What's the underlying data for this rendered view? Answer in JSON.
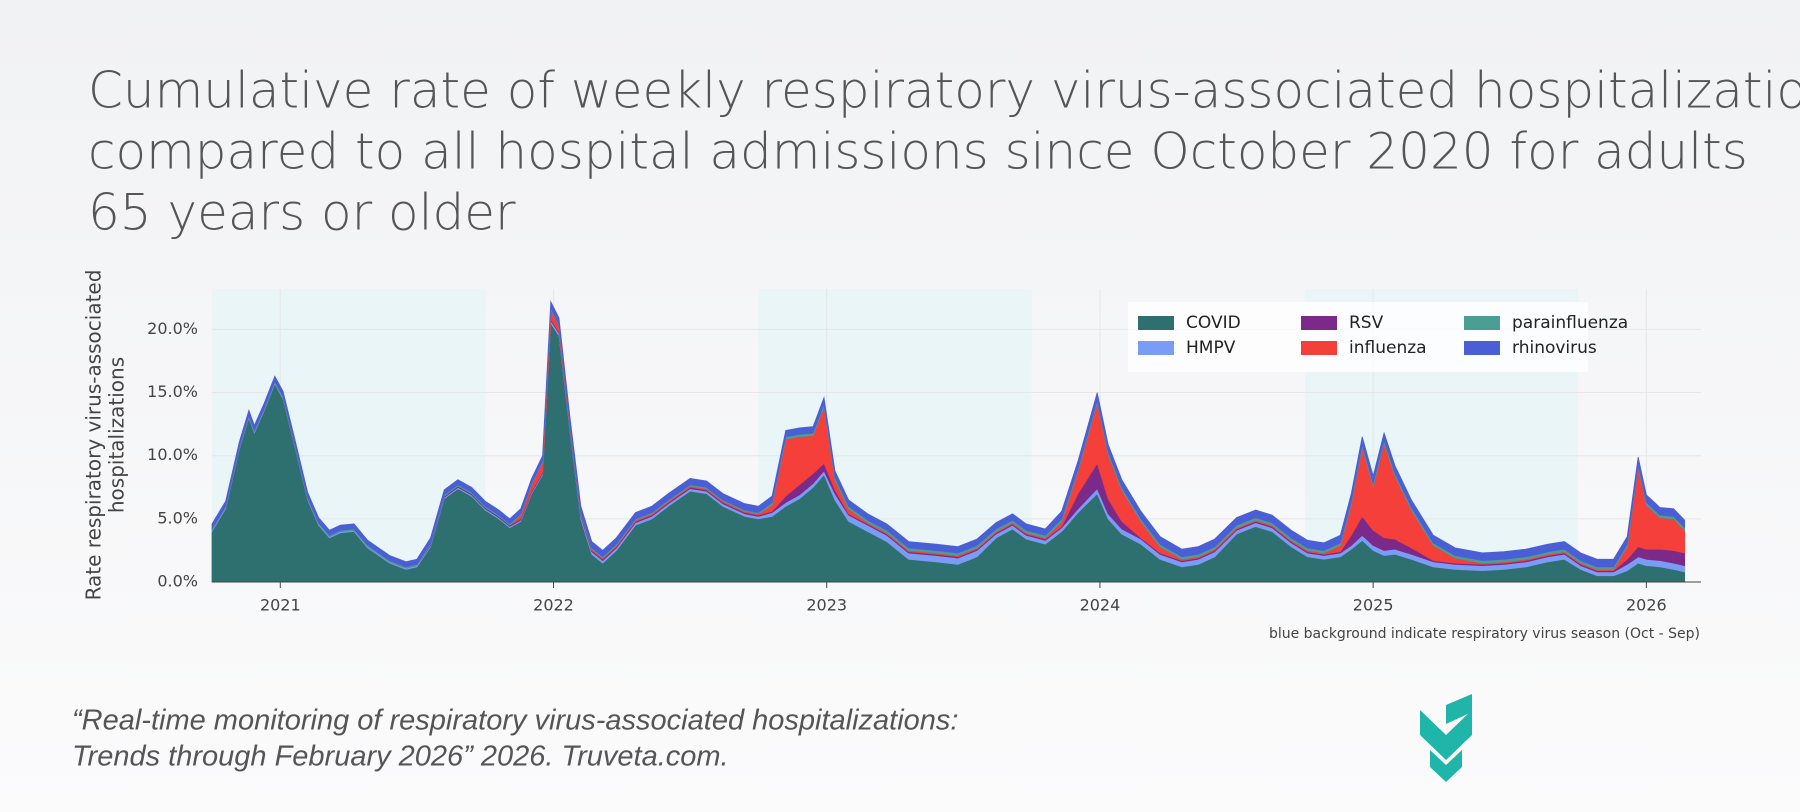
{
  "chart_data": {
    "type": "stacked_area",
    "title": [
      "Cumulative rate of weekly respiratory virus-associated hospitalizations",
      "compared to all hospital admissions since October 2020 for adults",
      "65 years or older"
    ],
    "ylabel": [
      "Rate respiratory virus-associated",
      "hospitalizations"
    ],
    "note": "blue background indicate respiratory virus season (Oct - Sep)",
    "citation": [
      "“Real-time monitoring of respiratory virus-associated hospitalizations:",
      "Trends through February 2026” 2026. Truveta.com."
    ],
    "logo": "TRUVETA",
    "xlim": [
      2020.75,
      2026.2
    ],
    "xticks": [
      2021,
      2022,
      2023,
      2024,
      2025,
      2026
    ],
    "ylim": [
      0,
      23.2
    ],
    "yticks": [
      {
        "value": 0,
        "label": "0.0%"
      },
      {
        "value": 5,
        "label": "5.0%"
      },
      {
        "value": 10,
        "label": "10.0%"
      },
      {
        "value": 15,
        "label": "15.0%"
      },
      {
        "value": 20,
        "label": "20.0%"
      }
    ],
    "grid": true,
    "legend": "upper right",
    "seasons": [
      [
        2020.75,
        2021.75
      ],
      [
        2022.75,
        2023.75
      ],
      [
        2024.75,
        2025.75
      ]
    ],
    "season_color": "#e9f5f7",
    "x": [
      2020.75,
      2020.8,
      2020.85,
      2020.885,
      2020.905,
      2020.94,
      2020.98,
      2021.01,
      2021.05,
      2021.1,
      2021.14,
      2021.18,
      2021.22,
      2021.27,
      2021.32,
      2021.4,
      2021.46,
      2021.5,
      2021.55,
      2021.6,
      2021.65,
      2021.7,
      2021.75,
      2021.8,
      2021.84,
      2021.88,
      2021.92,
      2021.96,
      2021.99,
      2022.02,
      2022.06,
      2022.1,
      2022.14,
      2022.18,
      2022.23,
      2022.3,
      2022.36,
      2022.42,
      2022.5,
      2022.56,
      2022.62,
      2022.7,
      2022.75,
      2022.8,
      2022.85,
      2022.9,
      2022.95,
      2022.99,
      2023.03,
      2023.08,
      2023.15,
      2023.22,
      2023.3,
      2023.4,
      2023.48,
      2023.55,
      2023.62,
      2023.68,
      2023.73,
      2023.8,
      2023.86,
      2023.92,
      2023.99,
      2024.03,
      2024.08,
      2024.15,
      2024.22,
      2024.3,
      2024.36,
      2024.42,
      2024.5,
      2024.57,
      2024.63,
      2024.7,
      2024.76,
      2024.82,
      2024.88,
      2024.92,
      2024.96,
      2025.0,
      2025.04,
      2025.08,
      2025.14,
      2025.22,
      2025.3,
      2025.4,
      2025.48,
      2025.56,
      2025.64,
      2025.7,
      2025.76,
      2025.82,
      2025.88,
      2025.93,
      2025.97,
      2026.0,
      2026.05,
      2026.1,
      2026.14
    ],
    "series": [
      {
        "name": "COVID",
        "color": "#2e7070",
        "values": [
          4.0,
          5.8,
          10.5,
          13.0,
          11.8,
          13.5,
          15.7,
          14.5,
          11.0,
          6.5,
          4.5,
          3.5,
          3.9,
          4.0,
          2.7,
          1.5,
          1.0,
          1.2,
          2.8,
          6.6,
          7.4,
          6.8,
          5.7,
          5.0,
          4.3,
          4.8,
          7.0,
          8.5,
          20.5,
          19.5,
          12.0,
          5.0,
          2.2,
          1.5,
          2.5,
          4.5,
          5.0,
          6.0,
          7.2,
          7.0,
          6.0,
          5.2,
          5.0,
          5.2,
          6.0,
          6.6,
          7.5,
          8.5,
          6.5,
          4.8,
          4.0,
          3.2,
          1.8,
          1.6,
          1.4,
          2.0,
          3.5,
          4.2,
          3.4,
          3.0,
          4.0,
          5.5,
          7.0,
          5.0,
          3.8,
          3.0,
          1.8,
          1.2,
          1.4,
          2.0,
          3.8,
          4.4,
          4.0,
          2.8,
          2.0,
          1.8,
          2.0,
          2.6,
          3.3,
          2.5,
          2.1,
          2.2,
          1.8,
          1.2,
          1.0,
          0.9,
          1.0,
          1.2,
          1.6,
          1.8,
          1.0,
          0.5,
          0.5,
          0.9,
          1.5,
          1.3,
          1.2,
          1.0,
          0.8
        ]
      },
      {
        "name": "HMPV",
        "color": "#7b9cf5",
        "values": [
          0.1,
          0.1,
          0.1,
          0.1,
          0.1,
          0.1,
          0.1,
          0.1,
          0.1,
          0.1,
          0.1,
          0.1,
          0.1,
          0.1,
          0.1,
          0.1,
          0.1,
          0.1,
          0.1,
          0.1,
          0.1,
          0.1,
          0.1,
          0.1,
          0.1,
          0.1,
          0.1,
          0.1,
          0.2,
          0.2,
          0.2,
          0.2,
          0.2,
          0.2,
          0.2,
          0.2,
          0.2,
          0.2,
          0.2,
          0.2,
          0.2,
          0.2,
          0.2,
          0.3,
          0.3,
          0.3,
          0.3,
          0.3,
          0.5,
          0.5,
          0.5,
          0.5,
          0.5,
          0.5,
          0.5,
          0.5,
          0.3,
          0.3,
          0.3,
          0.3,
          0.3,
          0.3,
          0.4,
          0.4,
          0.4,
          0.4,
          0.4,
          0.4,
          0.4,
          0.4,
          0.3,
          0.3,
          0.3,
          0.3,
          0.3,
          0.3,
          0.3,
          0.3,
          0.4,
          0.4,
          0.4,
          0.4,
          0.4,
          0.4,
          0.4,
          0.4,
          0.4,
          0.4,
          0.4,
          0.4,
          0.3,
          0.3,
          0.3,
          0.5,
          0.5,
          0.5,
          0.5,
          0.5,
          0.5
        ]
      },
      {
        "name": "RSV",
        "color": "#7b2a8a",
        "values": [
          0,
          0,
          0,
          0,
          0,
          0,
          0,
          0,
          0,
          0,
          0,
          0,
          0,
          0,
          0,
          0,
          0,
          0,
          0.1,
          0.1,
          0.1,
          0.1,
          0.1,
          0.1,
          0.1,
          0.1,
          0.1,
          0.1,
          0.1,
          0.1,
          0.1,
          0.1,
          0.1,
          0.1,
          0.1,
          0.1,
          0.1,
          0.1,
          0.1,
          0.1,
          0.1,
          0.1,
          0.1,
          0.1,
          0.5,
          0.8,
          0.8,
          0.6,
          0.3,
          0.1,
          0.1,
          0.1,
          0.1,
          0.1,
          0.1,
          0.1,
          0.1,
          0.1,
          0.1,
          0.1,
          0.1,
          1.2,
          2.0,
          1.2,
          0.6,
          0.1,
          0.1,
          0.1,
          0.1,
          0.1,
          0.1,
          0.1,
          0.1,
          0.1,
          0.1,
          0.1,
          0.1,
          0.8,
          1.5,
          1.2,
          1.0,
          0.8,
          0.5,
          0.1,
          0.1,
          0.1,
          0.1,
          0.1,
          0.1,
          0.1,
          0.1,
          0.1,
          0.1,
          0.4,
          0.8,
          0.8,
          0.9,
          1.0,
          1.0
        ]
      },
      {
        "name": "influenza",
        "color": "#f43f3a",
        "values": [
          0,
          0,
          0,
          0,
          0,
          0,
          0,
          0,
          0,
          0,
          0,
          0,
          0,
          0,
          0,
          0,
          0,
          0,
          0,
          0,
          0,
          0,
          0,
          0,
          0,
          0.3,
          0.5,
          0.8,
          0.8,
          0.5,
          0.2,
          0.1,
          0.1,
          0.1,
          0.1,
          0.1,
          0.1,
          0.1,
          0.1,
          0.1,
          0.1,
          0.1,
          0.1,
          0.5,
          4.5,
          3.8,
          3.0,
          4.5,
          0.8,
          0.4,
          0.1,
          0.1,
          0.1,
          0.1,
          0.1,
          0.1,
          0.1,
          0.1,
          0.1,
          0.1,
          0.4,
          1.8,
          4.8,
          3.5,
          2.5,
          1.3,
          0.5,
          0.1,
          0.1,
          0.1,
          0.1,
          0.1,
          0.1,
          0.1,
          0.1,
          0.1,
          0.5,
          2.5,
          5.5,
          3.5,
          7.5,
          5.0,
          3.0,
          1.2,
          0.4,
          0.1,
          0.1,
          0.1,
          0.1,
          0.1,
          0.1,
          0.1,
          0.1,
          1.0,
          6.3,
          3.5,
          2.5,
          2.5,
          1.8
        ]
      },
      {
        "name": "parainfluenza",
        "color": "#4a9e94",
        "values": [
          0.1,
          0.1,
          0.1,
          0.1,
          0.1,
          0.1,
          0.1,
          0.1,
          0.1,
          0.1,
          0.1,
          0.1,
          0.1,
          0.1,
          0.1,
          0.1,
          0.1,
          0.1,
          0.1,
          0.1,
          0.1,
          0.1,
          0.1,
          0.1,
          0.1,
          0.1,
          0.1,
          0.1,
          0.1,
          0.1,
          0.1,
          0.1,
          0.1,
          0.1,
          0.1,
          0.1,
          0.1,
          0.1,
          0.1,
          0.1,
          0.1,
          0.1,
          0.1,
          0.2,
          0.2,
          0.2,
          0.2,
          0.2,
          0.2,
          0.2,
          0.2,
          0.2,
          0.2,
          0.2,
          0.2,
          0.2,
          0.2,
          0.2,
          0.2,
          0.2,
          0.2,
          0.2,
          0.2,
          0.2,
          0.2,
          0.2,
          0.2,
          0.2,
          0.2,
          0.2,
          0.2,
          0.2,
          0.2,
          0.2,
          0.2,
          0.2,
          0.2,
          0.2,
          0.2,
          0.2,
          0.2,
          0.2,
          0.2,
          0.2,
          0.2,
          0.2,
          0.2,
          0.2,
          0.2,
          0.2,
          0.2,
          0.2,
          0.2,
          0.2,
          0.2,
          0.2,
          0.2,
          0.2,
          0.2
        ]
      },
      {
        "name": "rhinovirus",
        "color": "#4a5fd6",
        "values": [
          0.4,
          0.4,
          0.4,
          0.4,
          0.4,
          0.4,
          0.4,
          0.4,
          0.4,
          0.4,
          0.4,
          0.4,
          0.4,
          0.4,
          0.4,
          0.4,
          0.4,
          0.4,
          0.4,
          0.4,
          0.4,
          0.4,
          0.4,
          0.4,
          0.4,
          0.4,
          0.4,
          0.4,
          0.5,
          0.5,
          0.5,
          0.5,
          0.5,
          0.5,
          0.5,
          0.5,
          0.5,
          0.5,
          0.5,
          0.5,
          0.5,
          0.5,
          0.5,
          0.5,
          0.5,
          0.5,
          0.5,
          0.5,
          0.5,
          0.5,
          0.5,
          0.5,
          0.5,
          0.5,
          0.5,
          0.5,
          0.5,
          0.5,
          0.5,
          0.5,
          0.6,
          0.6,
          0.6,
          0.6,
          0.6,
          0.6,
          0.6,
          0.6,
          0.6,
          0.6,
          0.6,
          0.6,
          0.6,
          0.6,
          0.6,
          0.6,
          0.6,
          0.6,
          0.6,
          0.6,
          0.6,
          0.6,
          0.6,
          0.6,
          0.6,
          0.6,
          0.6,
          0.6,
          0.6,
          0.6,
          0.6,
          0.6,
          0.6,
          0.6,
          0.6,
          0.6,
          0.6,
          0.6,
          0.6
        ]
      }
    ]
  }
}
